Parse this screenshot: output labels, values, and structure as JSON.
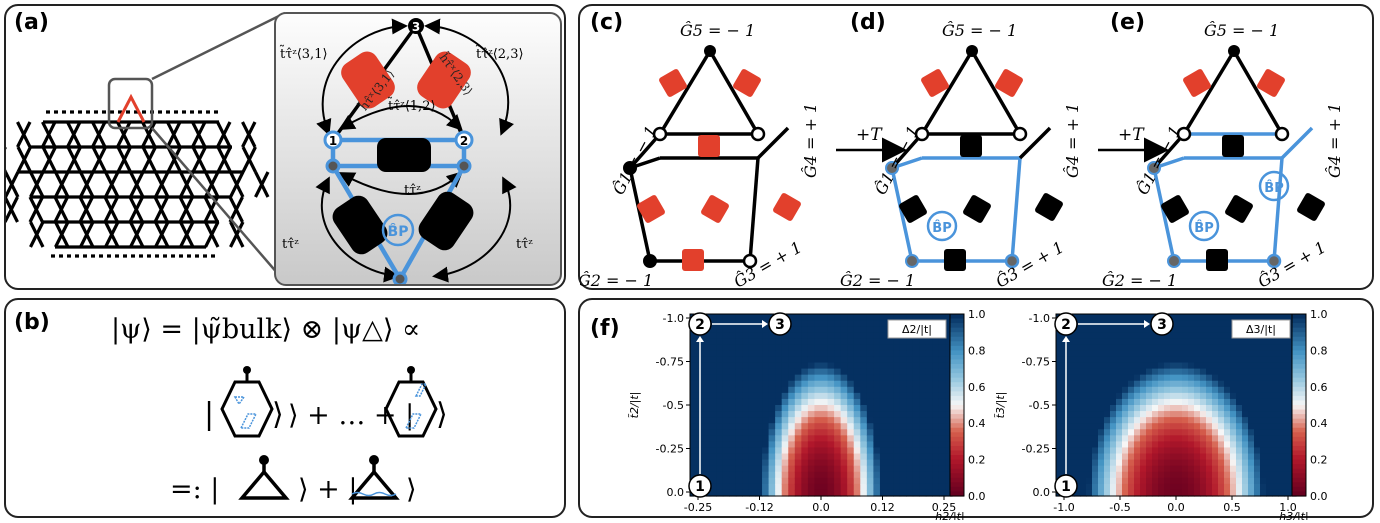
{
  "panels": {
    "a": "(a)",
    "b": "(b)",
    "c": "(c)",
    "d": "(d)",
    "e": "(e)",
    "f": "(f)"
  },
  "inset": {
    "nodes": [
      "3",
      "1",
      "2"
    ],
    "bp": "B̂P",
    "labels": {
      "tl": "t̃τ̂ᶻ⟨3,1⟩",
      "tr": "t̃τ̂ᶻ⟨2,3⟩",
      "h31": "h̃τ̂ˣ⟨3,1⟩",
      "h23": "h̃τ̂ˣ⟨2,3⟩",
      "t12": "t̃τ̂ᶻ⟨1,2⟩",
      "tz_mid": "tτ̂ᶻ",
      "tz_left": "tτ̂ᶻ",
      "tz_right": "tτ̂ᶻ"
    }
  },
  "b": {
    "line1": "|ψ⟩ = |ψ̃bulk⟩ ⊗ |ψ△⟩ ∝",
    "line2_mid": "⟩ + … + |",
    "line3_a": "=: |",
    "line3_b": "⟩ + |",
    "line3_c": "⟩"
  },
  "cde": {
    "G5": "Ĝ5 = − 1",
    "G1": "Ĝ1 = − 1",
    "G4": "Ĝ4 = + 1",
    "G2": "Ĝ2 = − 1",
    "G3": "Ĝ3 = + 1",
    "arrow": "+T",
    "bp": "B̂P"
  },
  "chart_data": [
    {
      "type": "heatmap",
      "xlabel": "h2/|t|",
      "ylabel": "t̃2/|t|",
      "colorbar_label": "Δ2/|t|",
      "xticks": [
        "-0.25",
        "-0.12",
        "0.0",
        "0.12",
        "0.25"
      ],
      "yticks": [
        "-1.0",
        "-0.75",
        "-0.5",
        "-0.25",
        "0.0"
      ],
      "cbar_ticks": [
        "1.0",
        "0.8",
        "0.6",
        "0.4",
        "0.2",
        "0.0"
      ],
      "xlim": [
        -0.3,
        0.3
      ],
      "ylim": [
        0.0,
        -1.0
      ],
      "points": [
        {
          "label": "1",
          "x": -0.28,
          "y": 0.0
        },
        {
          "label": "2",
          "x": -0.28,
          "y": -1.0
        },
        {
          "label": "3",
          "x": -0.07,
          "y": -1.0
        }
      ]
    },
    {
      "type": "heatmap",
      "xlabel": "h3/|t|",
      "ylabel": "t̃3/|t|",
      "colorbar_label": "Δ3/|t|",
      "xticks": [
        "-1.0",
        "-0.5",
        "0.0",
        "0.5",
        "1.0"
      ],
      "yticks": [
        "-1.0",
        "-0.75",
        "-0.5",
        "-0.25",
        "0.0"
      ],
      "cbar_ticks": [
        "1.0",
        "0.8",
        "0.6",
        "0.4",
        "0.2",
        "0.0"
      ],
      "xlim": [
        -1.2,
        1.2
      ],
      "ylim": [
        0.0,
        -1.0
      ],
      "points": [
        {
          "label": "1",
          "x": -1.15,
          "y": 0.0
        },
        {
          "label": "2",
          "x": -1.15,
          "y": -1.0
        },
        {
          "label": "3",
          "x": -0.3,
          "y": -1.0
        }
      ]
    }
  ],
  "colors": {
    "red": "#e2402c",
    "blue": "#4a94db",
    "black": "#000000"
  }
}
